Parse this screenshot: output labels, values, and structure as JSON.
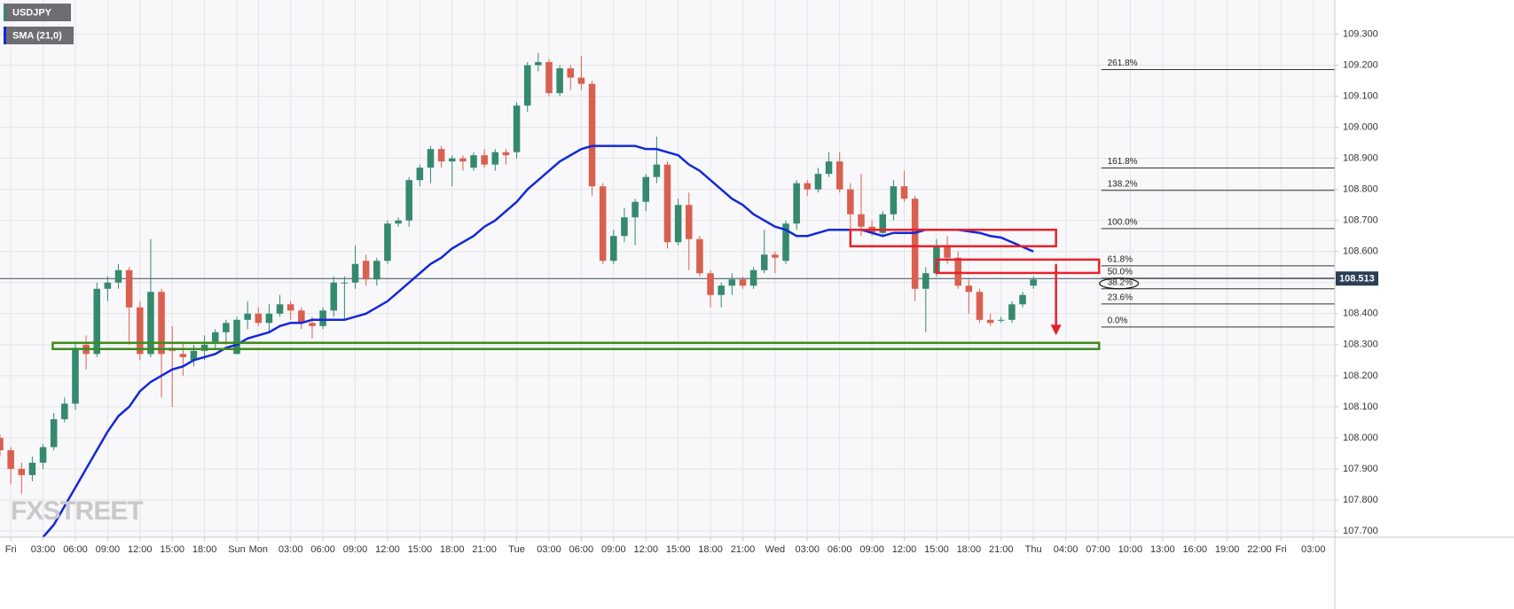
{
  "chart_data": {
    "type": "candlestick",
    "title": "USDJPY",
    "watermark": "FXSTREET",
    "series": [
      {
        "name": "USDJPY",
        "up_color": "#35896c",
        "down_color": "#d9604f",
        "open": [
          108.0,
          107.96,
          107.9,
          107.88,
          107.92,
          107.97,
          108.06,
          108.11,
          108.3,
          108.27,
          108.48,
          108.5,
          108.54,
          108.42,
          108.27,
          108.47,
          108.29,
          108.27,
          108.25,
          108.28,
          108.31,
          108.34,
          108.27,
          108.38,
          108.4,
          108.37,
          108.4,
          108.43,
          108.41,
          108.37,
          108.36,
          108.41,
          108.5,
          108.5,
          108.57,
          108.51,
          108.57,
          108.69,
          108.7,
          108.83,
          108.87,
          108.93,
          108.89,
          108.9,
          108.87,
          108.91,
          108.88,
          108.92,
          108.92,
          109.07,
          109.2,
          109.21,
          109.11,
          109.19,
          109.16,
          109.14,
          108.81,
          108.57,
          108.65,
          108.71,
          108.76,
          108.84,
          108.88,
          108.63,
          108.75,
          108.64,
          108.53,
          108.46,
          108.49,
          108.51,
          108.49,
          108.54,
          108.59,
          108.57,
          108.69,
          108.82,
          108.8,
          108.85,
          108.89,
          108.8,
          108.72,
          108.68,
          108.66,
          108.72,
          108.81,
          108.77,
          108.48,
          108.53,
          108.62,
          108.58,
          108.49,
          108.47,
          108.38,
          108.38,
          108.38,
          108.43,
          108.49
        ],
        "high": [
          108.01,
          107.97,
          107.92,
          107.94,
          107.98,
          108.08,
          108.13,
          108.31,
          108.33,
          108.5,
          108.52,
          108.56,
          108.55,
          108.44,
          108.64,
          108.48,
          108.36,
          108.31,
          108.3,
          108.33,
          108.35,
          108.38,
          108.39,
          108.44,
          108.42,
          108.43,
          108.46,
          108.44,
          108.42,
          108.39,
          108.42,
          108.52,
          108.52,
          108.62,
          108.59,
          108.58,
          108.7,
          108.71,
          108.84,
          108.88,
          108.94,
          108.94,
          108.91,
          108.91,
          108.92,
          108.93,
          108.93,
          108.93,
          109.08,
          109.21,
          109.24,
          109.22,
          109.2,
          109.2,
          109.23,
          109.15,
          108.82,
          108.67,
          108.74,
          108.77,
          108.85,
          108.97,
          108.89,
          108.77,
          108.79,
          108.65,
          108.54,
          108.5,
          108.53,
          108.52,
          108.55,
          108.67,
          108.6,
          108.7,
          108.83,
          108.83,
          108.87,
          108.92,
          108.92,
          108.82,
          108.85,
          108.7,
          108.73,
          108.83,
          108.86,
          108.78,
          108.55,
          108.64,
          108.65,
          108.6,
          108.51,
          108.48,
          108.4,
          108.39,
          108.44,
          108.47,
          108.52
        ],
        "low": [
          107.94,
          107.85,
          107.82,
          107.86,
          107.9,
          107.96,
          108.05,
          108.09,
          108.22,
          108.26,
          108.44,
          108.48,
          108.3,
          108.25,
          108.26,
          108.13,
          108.1,
          108.2,
          108.23,
          108.25,
          108.29,
          108.3,
          108.27,
          108.35,
          108.36,
          108.34,
          108.39,
          108.38,
          108.35,
          108.32,
          108.35,
          108.39,
          108.38,
          108.48,
          108.49,
          108.49,
          108.56,
          108.68,
          108.68,
          108.81,
          108.82,
          108.87,
          108.81,
          108.86,
          108.86,
          108.87,
          108.86,
          108.88,
          108.9,
          109.05,
          109.18,
          109.1,
          109.1,
          109.12,
          109.12,
          108.78,
          108.56,
          108.56,
          108.63,
          108.62,
          108.73,
          108.82,
          108.61,
          108.62,
          108.54,
          108.52,
          108.42,
          108.42,
          108.46,
          108.48,
          108.48,
          108.53,
          108.53,
          108.56,
          108.67,
          108.78,
          108.79,
          108.84,
          108.79,
          108.66,
          108.65,
          108.65,
          108.65,
          108.7,
          108.76,
          108.44,
          108.34,
          108.52,
          108.56,
          108.48,
          108.4,
          108.37,
          108.36,
          108.37,
          108.37,
          108.42,
          108.48
        ],
        "close": [
          107.96,
          107.9,
          107.88,
          107.92,
          107.97,
          108.06,
          108.11,
          108.29,
          108.27,
          108.48,
          108.5,
          108.54,
          108.42,
          108.27,
          108.47,
          108.27,
          108.28,
          108.26,
          108.28,
          108.3,
          108.34,
          108.37,
          108.38,
          108.4,
          108.37,
          108.4,
          108.43,
          108.41,
          108.37,
          108.36,
          108.41,
          108.5,
          108.5,
          108.56,
          108.51,
          108.57,
          108.69,
          108.7,
          108.83,
          108.87,
          108.93,
          108.89,
          108.9,
          108.89,
          108.91,
          108.88,
          108.92,
          108.91,
          109.07,
          109.2,
          109.21,
          109.11,
          109.19,
          109.16,
          109.14,
          108.81,
          108.57,
          108.65,
          108.71,
          108.76,
          108.84,
          108.88,
          108.63,
          108.75,
          108.64,
          108.53,
          108.46,
          108.49,
          108.51,
          108.49,
          108.54,
          108.59,
          108.58,
          108.69,
          108.82,
          108.8,
          108.85,
          108.89,
          108.8,
          108.72,
          108.68,
          108.66,
          108.72,
          108.81,
          108.77,
          108.48,
          108.53,
          108.62,
          108.58,
          108.49,
          108.47,
          108.38,
          108.37,
          108.38,
          108.43,
          108.46,
          108.51
        ]
      },
      {
        "name": "SMA (21,0)",
        "type": "line",
        "color": "#1428d8",
        "values": [
          null,
          null,
          null,
          null,
          107.68,
          107.72,
          107.78,
          107.84,
          107.9,
          107.96,
          108.02,
          108.07,
          108.1,
          108.15,
          108.18,
          108.2,
          108.22,
          108.23,
          108.25,
          108.26,
          108.27,
          108.29,
          108.3,
          108.32,
          108.33,
          108.34,
          108.36,
          108.37,
          108.37,
          108.38,
          108.38,
          108.38,
          108.38,
          108.39,
          108.4,
          108.42,
          108.44,
          108.47,
          108.5,
          108.53,
          108.56,
          108.58,
          108.61,
          108.63,
          108.65,
          108.68,
          108.7,
          108.73,
          108.76,
          108.8,
          108.83,
          108.86,
          108.89,
          108.91,
          108.93,
          108.94,
          108.94,
          108.94,
          108.94,
          108.94,
          108.93,
          108.93,
          108.92,
          108.91,
          108.88,
          108.86,
          108.83,
          108.8,
          108.77,
          108.75,
          108.72,
          108.7,
          108.68,
          108.67,
          108.65,
          108.65,
          108.66,
          108.67,
          108.67,
          108.67,
          108.67,
          108.66,
          108.65,
          108.66,
          108.66,
          108.66,
          108.67,
          108.67,
          108.67,
          108.67,
          108.665,
          108.66,
          108.65,
          108.645,
          108.63,
          108.615,
          108.6
        ]
      }
    ],
    "current_price": {
      "value": 108.513,
      "label": "108.513"
    },
    "fibonacci": {
      "start": 102.3,
      "levels": [
        {
          "value": 109.186,
          "label": "261.8%"
        },
        {
          "value": 108.869,
          "label": "161.8%"
        },
        {
          "value": 108.797,
          "label": "138.2%"
        },
        {
          "value": 108.674,
          "label": "100.0%"
        },
        {
          "value": 108.554,
          "label": "61.8%"
        },
        {
          "value": 108.514,
          "label": "50.0%"
        },
        {
          "value": 108.48,
          "label": "38.2%"
        },
        {
          "value": 108.431,
          "label": "23.6%"
        },
        {
          "value": 108.357,
          "label": "0.0%"
        }
      ]
    },
    "zones": [
      {
        "x": [
          79,
          98.1
        ],
        "y": [
          108.617,
          108.67
        ],
        "color": "#e8222a"
      },
      {
        "x": [
          87,
          102.1
        ],
        "y": [
          108.531,
          108.574
        ],
        "color": "#e8222a"
      },
      {
        "x": [
          4.9,
          102.1
        ],
        "y": [
          108.286,
          108.306
        ],
        "color": "#3c8c1c"
      }
    ],
    "arrow": {
      "x": 98.1,
      "y": [
        108.56,
        108.33
      ],
      "color": "#e8222a"
    },
    "xlim": [
      0,
      124
    ],
    "ylim": [
      107.68,
      109.41
    ],
    "xticks": [
      {
        "value": 1,
        "label": "Fri"
      },
      {
        "value": 4,
        "label": "03:00"
      },
      {
        "value": 7,
        "label": "06:00"
      },
      {
        "value": 10,
        "label": "09:00"
      },
      {
        "value": 13,
        "label": "12:00"
      },
      {
        "value": 16,
        "label": "15:00"
      },
      {
        "value": 19,
        "label": "18:00"
      },
      {
        "value": 22,
        "label": "Sun"
      },
      {
        "value": 24,
        "label": "Mon"
      },
      {
        "value": 27,
        "label": "03:00"
      },
      {
        "value": 30,
        "label": "06:00"
      },
      {
        "value": 33,
        "label": "09:00"
      },
      {
        "value": 36,
        "label": "12:00"
      },
      {
        "value": 39,
        "label": "15:00"
      },
      {
        "value": 42,
        "label": "18:00"
      },
      {
        "value": 45,
        "label": "21:00"
      },
      {
        "value": 48,
        "label": "Tue"
      },
      {
        "value": 51,
        "label": "03:00"
      },
      {
        "value": 54,
        "label": "06:00"
      },
      {
        "value": 57,
        "label": "09:00"
      },
      {
        "value": 60,
        "label": "12:00"
      },
      {
        "value": 63,
        "label": "15:00"
      },
      {
        "value": 66,
        "label": "18:00"
      },
      {
        "value": 69,
        "label": "21:00"
      },
      {
        "value": 72,
        "label": "Wed"
      },
      {
        "value": 75,
        "label": "03:00"
      },
      {
        "value": 78,
        "label": "06:00"
      },
      {
        "value": 81,
        "label": "09:00"
      },
      {
        "value": 84,
        "label": "12:00"
      },
      {
        "value": 87,
        "label": "15:00"
      },
      {
        "value": 90,
        "label": "18:00"
      },
      {
        "value": 93,
        "label": "21:00"
      },
      {
        "value": 96,
        "label": "Thu"
      },
      {
        "value": 99,
        "label": "04:00"
      },
      {
        "value": 102,
        "label": "07:00"
      },
      {
        "value": 105,
        "label": "10:00"
      },
      {
        "value": 108,
        "label": "13:00"
      },
      {
        "value": 111,
        "label": "16:00"
      },
      {
        "value": 114,
        "label": "19:00"
      },
      {
        "value": 117,
        "label": "22:00"
      },
      {
        "value": 119,
        "label": "Fri"
      },
      {
        "value": 122,
        "label": "03:00"
      }
    ],
    "yticks": [
      {
        "value": 107.7,
        "label": "107.700"
      },
      {
        "value": 107.8,
        "label": "107.800"
      },
      {
        "value": 107.9,
        "label": "107.900"
      },
      {
        "value": 108.0,
        "label": "108.000"
      },
      {
        "value": 108.1,
        "label": "108.100"
      },
      {
        "value": 108.2,
        "label": "108.200"
      },
      {
        "value": 108.3,
        "label": "108.300"
      },
      {
        "value": 108.4,
        "label": "108.400"
      },
      {
        "value": 108.5,
        "label": "108.500"
      },
      {
        "value": 108.6,
        "label": "108.600"
      },
      {
        "value": 108.7,
        "label": "108.700"
      },
      {
        "value": 108.8,
        "label": "108.800"
      },
      {
        "value": 108.9,
        "label": "108.900"
      },
      {
        "value": 109.0,
        "label": "109.000"
      },
      {
        "value": 109.1,
        "label": "109.100"
      },
      {
        "value": 109.2,
        "label": "109.200"
      },
      {
        "value": 109.3,
        "label": "109.300"
      }
    ],
    "grid": true
  }
}
